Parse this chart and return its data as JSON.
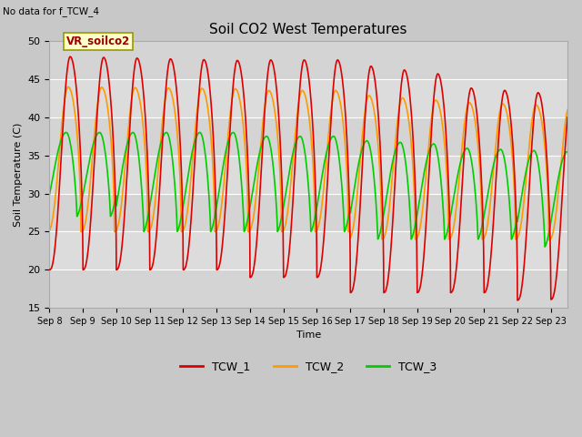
{
  "title": "Soil CO2 West Temperatures",
  "xlabel": "Time",
  "ylabel": "Soil Temperature (C)",
  "no_data_text": "No data for f_TCW_4",
  "annotation_text": "VR_soilco2",
  "ylim": [
    15,
    50
  ],
  "x_tick_labels": [
    "Sep 8",
    "Sep 9",
    "Sep 10",
    "Sep 11",
    "Sep 12",
    "Sep 13",
    "Sep 14",
    "Sep 15",
    "Sep 16",
    "Sep 17",
    "Sep 18",
    "Sep 19",
    "Sep 20",
    "Sep 21",
    "Sep 22",
    "Sep 23"
  ],
  "line_colors": {
    "TCW_1": "#dd0000",
    "TCW_2": "#ff9900",
    "TCW_3": "#00cc00"
  },
  "linewidth": 1.2,
  "fig_facecolor": "#c8c8c8",
  "plot_bg_color": "#e0e0e0",
  "grid_color": "#ffffff"
}
